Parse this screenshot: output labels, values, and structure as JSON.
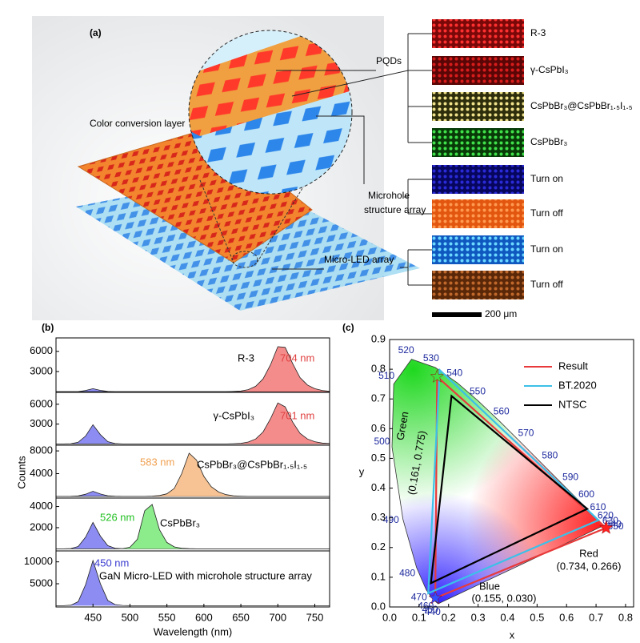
{
  "panel_a": {
    "label": "(a)",
    "callouts": [
      "Color conversion layer",
      "PQDs",
      "Microhole",
      "structure array",
      "Micro-LED array"
    ],
    "swatches": [
      {
        "label": "R-3",
        "color": "#7a0808",
        "dot_color": "#ff3030"
      },
      {
        "label": "γ-CsPbI₃",
        "color": "#5a0606",
        "dot_color": "#d81c1c"
      },
      {
        "label": "CsPbBr₃@CsPbBr₁.₅I₁.₅",
        "color": "#2e2e0c",
        "dot_color": "#efe08a"
      },
      {
        "label": "CsPbBr₃",
        "color": "#083a08",
        "dot_color": "#3fe04a"
      },
      {
        "label": "Turn on",
        "color": "#06065e",
        "dot_color": "#2a2ad8"
      },
      {
        "label": "Turn off",
        "color": "#e2560f",
        "dot_color": "#ff9a50"
      },
      {
        "label": "Turn on",
        "color": "#0f58c0",
        "dot_color": "#6ad8ff"
      },
      {
        "label": "Turn off",
        "color": "#5a2808",
        "dot_color": "#c0682c"
      }
    ],
    "scale_bar": "200 μm"
  },
  "chart_data": [
    {
      "type": "area",
      "panel_label": "(b)",
      "xlim": [
        400,
        770
      ],
      "ylim": [
        -100,
        8000
      ],
      "yticks": [
        3000,
        6000
      ],
      "x": [
        400,
        410,
        420,
        430,
        440,
        450,
        460,
        470,
        480,
        490,
        500,
        510,
        520,
        530,
        540,
        550,
        560,
        570,
        580,
        590,
        600,
        610,
        620,
        630,
        640,
        650,
        660,
        670,
        680,
        690,
        700,
        710,
        720,
        730,
        740,
        750,
        760,
        770
      ],
      "series": [
        {
          "color": "#7f7ff2",
          "values": [
            0,
            0,
            0,
            20,
            180,
            450,
            200,
            45,
            10,
            0,
            0,
            0,
            0,
            0,
            0,
            0,
            0,
            0,
            0,
            0,
            0,
            0,
            0,
            0,
            0,
            0,
            0,
            0,
            0,
            0,
            0,
            0,
            0,
            0,
            0,
            0,
            0,
            0
          ]
        },
        {
          "color": "#f48080",
          "values": [
            0,
            0,
            0,
            0,
            0,
            0,
            0,
            0,
            0,
            0,
            0,
            0,
            0,
            0,
            0,
            0,
            0,
            0,
            0,
            0,
            0,
            0,
            0,
            0,
            40,
            100,
            300,
            800,
            1900,
            4000,
            6700,
            6600,
            4200,
            2100,
            1000,
            450,
            180,
            70
          ]
        }
      ],
      "annotations": [
        {
          "text": "R-3",
          "color": "#000000"
        },
        {
          "text": "704 nm",
          "color": "#e04040"
        }
      ]
    },
    {
      "type": "area",
      "xlim": [
        400,
        770
      ],
      "ylim": [
        -200,
        7800
      ],
      "yticks": [
        3000,
        6000
      ],
      "x": [
        400,
        410,
        420,
        430,
        440,
        450,
        460,
        470,
        480,
        490,
        500,
        510,
        520,
        530,
        540,
        550,
        560,
        570,
        580,
        590,
        600,
        610,
        620,
        630,
        640,
        650,
        660,
        670,
        680,
        690,
        700,
        710,
        720,
        730,
        740,
        750,
        760,
        770
      ],
      "series": [
        {
          "color": "#7f7ff2",
          "values": [
            0,
            0,
            30,
            250,
            1200,
            2900,
            1400,
            350,
            60,
            0,
            0,
            0,
            0,
            0,
            0,
            0,
            0,
            0,
            0,
            0,
            0,
            0,
            0,
            0,
            0,
            0,
            0,
            0,
            0,
            0,
            0,
            0,
            0,
            0,
            0,
            0,
            0,
            0
          ]
        },
        {
          "color": "#f48080",
          "values": [
            0,
            0,
            0,
            0,
            0,
            0,
            0,
            0,
            0,
            0,
            0,
            0,
            0,
            0,
            0,
            0,
            0,
            0,
            0,
            0,
            0,
            0,
            0,
            0,
            30,
            90,
            280,
            750,
            1800,
            3800,
            6200,
            5600,
            3300,
            1600,
            750,
            330,
            130,
            50
          ]
        }
      ],
      "annotations": [
        {
          "text": "γ-CsPbI₃",
          "color": "#000000"
        },
        {
          "text": "701 nm",
          "color": "#e04040"
        }
      ]
    },
    {
      "type": "area",
      "ylabel": "Counts",
      "xlim": [
        400,
        770
      ],
      "ylim": [
        -300,
        9000
      ],
      "yticks": [
        4000,
        8000
      ],
      "x": [
        400,
        410,
        420,
        430,
        440,
        450,
        460,
        470,
        480,
        490,
        500,
        510,
        520,
        530,
        540,
        550,
        560,
        570,
        580,
        590,
        600,
        610,
        620,
        630,
        640,
        650,
        660,
        670,
        680,
        690,
        700,
        710,
        720,
        730,
        740,
        750,
        760,
        770
      ],
      "series": [
        {
          "color": "#7f7ff2",
          "values": [
            0,
            0,
            10,
            80,
            380,
            900,
            420,
            100,
            20,
            0,
            0,
            0,
            0,
            0,
            0,
            0,
            0,
            0,
            0,
            0,
            0,
            0,
            0,
            0,
            0,
            0,
            0,
            0,
            0,
            0,
            0,
            0,
            0,
            0,
            0,
            0,
            0,
            0
          ]
        },
        {
          "color": "#f6bd88",
          "values": [
            0,
            0,
            0,
            0,
            0,
            0,
            0,
            0,
            0,
            0,
            0,
            0,
            0,
            50,
            150,
            450,
            1400,
            4000,
            7600,
            6400,
            3500,
            1700,
            750,
            300,
            110,
            40,
            0,
            0,
            0,
            0,
            0,
            0,
            0,
            0,
            0,
            0,
            0,
            0
          ]
        }
      ],
      "annotations": [
        {
          "text": "583 nm",
          "color": "#f0a050"
        },
        {
          "text": "CsPbBr₃@CsPbBr₁.₅I₁.₅",
          "color": "#000000"
        }
      ]
    },
    {
      "type": "area",
      "xlim": [
        400,
        770
      ],
      "ylim": [
        -200,
        4800
      ],
      "yticks": [
        2000,
        4000
      ],
      "x": [
        400,
        410,
        420,
        430,
        440,
        450,
        460,
        470,
        480,
        490,
        500,
        510,
        520,
        530,
        540,
        550,
        560,
        570,
        580,
        590,
        600,
        610,
        620,
        630,
        640,
        650,
        660,
        670,
        680,
        690,
        700,
        710,
        720,
        730,
        740,
        750,
        760,
        770
      ],
      "series": [
        {
          "color": "#7f7ff2",
          "values": [
            0,
            0,
            30,
            220,
            1100,
            2500,
            1200,
            300,
            60,
            10,
            0,
            0,
            0,
            0,
            0,
            0,
            0,
            0,
            0,
            0,
            0,
            0,
            0,
            0,
            0,
            0,
            0,
            0,
            0,
            0,
            0,
            0,
            0,
            0,
            0,
            0,
            0,
            0
          ]
        },
        {
          "color": "#80ea80",
          "values": [
            0,
            0,
            0,
            0,
            0,
            0,
            0,
            0,
            0,
            20,
            150,
            900,
            3600,
            4200,
            1800,
            600,
            180,
            50,
            10,
            0,
            0,
            0,
            0,
            0,
            0,
            0,
            0,
            0,
            0,
            0,
            0,
            0,
            0,
            0,
            0,
            0,
            0,
            0
          ]
        }
      ],
      "annotations": [
        {
          "text": "526 nm",
          "color": "#22c022"
        },
        {
          "text": "CsPbBr₃",
          "color": "#000000"
        }
      ]
    },
    {
      "type": "area",
      "xlabel": "Wavelength (nm)",
      "xlim": [
        400,
        770
      ],
      "ylim": [
        -300,
        12500
      ],
      "yticks": [
        5000,
        10000
      ],
      "xticks": [
        450,
        500,
        550,
        600,
        650,
        700,
        750
      ],
      "x": [
        400,
        410,
        420,
        430,
        440,
        450,
        460,
        470,
        480,
        490,
        500,
        510,
        520,
        530,
        540,
        550,
        560,
        570,
        580,
        590,
        600,
        610,
        620,
        630,
        640,
        650,
        660,
        670,
        680,
        690,
        700,
        710,
        720,
        730,
        740,
        750,
        760,
        770
      ],
      "series": [
        {
          "color": "#7f7ff2",
          "values": [
            0,
            0,
            100,
            900,
            4800,
            10300,
            5000,
            1200,
            250,
            50,
            0,
            0,
            0,
            0,
            0,
            0,
            0,
            0,
            0,
            0,
            0,
            0,
            0,
            0,
            0,
            0,
            0,
            0,
            0,
            0,
            0,
            0,
            0,
            0,
            0,
            0,
            0,
            0
          ]
        }
      ],
      "annotations": [
        {
          "text": "450 nm",
          "color": "#3a3ad0"
        },
        {
          "text": "GaN Micro-LED with microhole structure array",
          "color": "#000000"
        }
      ]
    },
    {
      "type": "cie",
      "panel_label": "(c)",
      "xlabel": "x",
      "ylabel": "y",
      "xlim": [
        0,
        0.83
      ],
      "ylim": [
        0,
        0.9
      ],
      "xticks": [
        {
          "value": 0,
          "label": "0.0"
        },
        0.1,
        0.2,
        0.3,
        0.4,
        0.5,
        0.6,
        0.7,
        0.8
      ],
      "yticks": [
        {
          "value": 0,
          "label": "0.0"
        },
        0.1,
        0.2,
        0.3,
        0.4,
        0.5,
        0.6,
        0.7,
        0.8,
        0.9
      ],
      "legend": "upper right",
      "locus": {
        "wavelengths": [
          440,
          450,
          460,
          470,
          480,
          490,
          500,
          510,
          520,
          530,
          540,
          550,
          560,
          570,
          580,
          590,
          600,
          610,
          620,
          630,
          640,
          650
        ],
        "x": [
          0.1644,
          0.1566,
          0.144,
          0.1241,
          0.0913,
          0.0454,
          0.0082,
          0.0139,
          0.0743,
          0.1547,
          0.2296,
          0.3016,
          0.3731,
          0.4441,
          0.5125,
          0.5752,
          0.627,
          0.6658,
          0.6915,
          0.7079,
          0.719,
          0.726
        ],
        "y": [
          0.0109,
          0.0177,
          0.0297,
          0.0578,
          0.1327,
          0.295,
          0.5384,
          0.7502,
          0.8338,
          0.8059,
          0.7543,
          0.6923,
          0.6245,
          0.5547,
          0.4866,
          0.4242,
          0.3725,
          0.334,
          0.3083,
          0.292,
          0.2809,
          0.274
        ]
      },
      "series": [
        {
          "name": "Result",
          "color": "#e83a3a",
          "x": [
            0.734,
            0.161,
            0.155
          ],
          "y": [
            0.266,
            0.775,
            0.03
          ],
          "marker_colors": [
            "#ff2020",
            "#40e040",
            "#3050ff"
          ]
        },
        {
          "name": "BT.2020",
          "color": "#3cc0e8",
          "x": [
            0.708,
            0.17,
            0.131
          ],
          "y": [
            0.292,
            0.797,
            0.046
          ]
        },
        {
          "name": "NTSC",
          "color": "#000000",
          "x": [
            0.67,
            0.21,
            0.14
          ],
          "y": [
            0.33,
            0.71,
            0.08
          ]
        }
      ],
      "annotations": [
        {
          "text": "Green"
        },
        {
          "text": "(0.161, 0.775)"
        },
        {
          "text": "Red"
        },
        {
          "text": "(0.734, 0.266)"
        },
        {
          "text": "Blue"
        },
        {
          "text": "(0.155, 0.030)"
        }
      ]
    }
  ]
}
